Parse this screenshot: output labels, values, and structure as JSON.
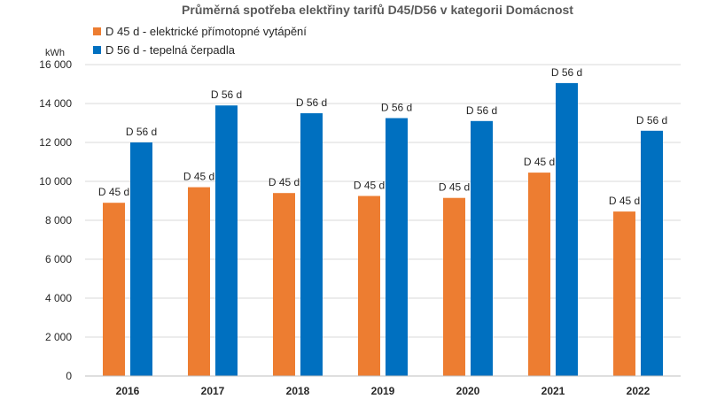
{
  "chart_data": {
    "type": "bar",
    "title": "Průměrná spotřeba elektřiny tarifů D45/D56 v kategorii Domácnost",
    "unit_label": "kWh",
    "ylim": [
      0,
      16000
    ],
    "yticks": [
      0,
      2000,
      4000,
      6000,
      8000,
      10000,
      12000,
      14000,
      16000
    ],
    "ytick_labels": [
      "0",
      "2 000",
      "4 000",
      "6 000",
      "8 000",
      "10 000",
      "12 000",
      "14 000",
      "16 000"
    ],
    "grid": true,
    "legend_position": "top-left",
    "categories": [
      "2016",
      "2017",
      "2018",
      "2019",
      "2020",
      "2021",
      "2022"
    ],
    "series": [
      {
        "name": "D 45 d - elektrické přímotopné vytápění",
        "data_label": "D 45 d",
        "color": "#ED7D31",
        "values": [
          8900,
          9700,
          9400,
          9250,
          9150,
          10450,
          8450
        ]
      },
      {
        "name": "D 56 d - tepelná čerpadla",
        "data_label": "D 56 d",
        "color": "#0070C0",
        "values": [
          12000,
          13900,
          13500,
          13250,
          13100,
          15050,
          12600
        ]
      }
    ]
  }
}
